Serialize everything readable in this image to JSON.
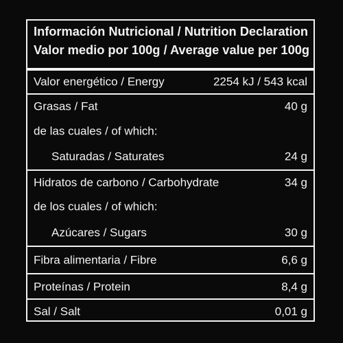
{
  "header": {
    "lines": [
      "Información Nutricional / Nutrition Declaration",
      "Valor medio por 100g / Average value per 100g"
    ]
  },
  "rows": [
    {
      "label": "Valor energético / Energy",
      "value": "2254 kJ / 543 kcal"
    },
    {
      "label": "Grasas / Fat",
      "value": "40 g"
    },
    {
      "label": "de las cuales / of which:"
    },
    {
      "label": "Saturadas / Saturates",
      "value": "24 g"
    },
    {
      "label": "Hidratos de carbono / Carbohydrate",
      "value": "34 g"
    },
    {
      "label": "de los cuales / of which:"
    },
    {
      "label": "Azúcares / Sugars",
      "value": "30 g"
    },
    {
      "label": "Fibra alimentaria / Fibre",
      "value": "6,6 g"
    },
    {
      "label": "Proteínas / Protein",
      "value": "8,4 g"
    },
    {
      "label": "Sal / Salt",
      "value": "0,01 g"
    }
  ]
}
